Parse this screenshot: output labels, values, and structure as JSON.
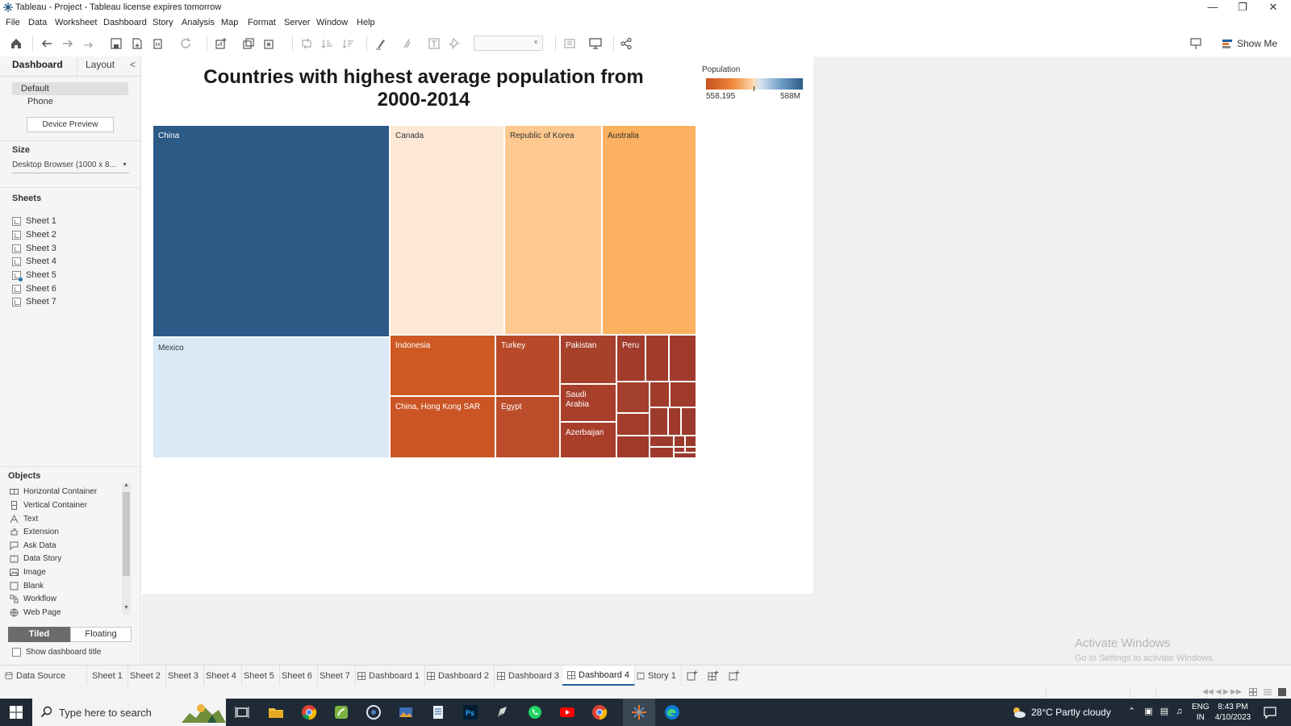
{
  "window": {
    "title": "Tableau - Project - Tableau license expires tomorrow"
  },
  "menu": [
    "File",
    "Data",
    "Worksheet",
    "Dashboard",
    "Story",
    "Analysis",
    "Map",
    "Format",
    "Server",
    "Window",
    "Help"
  ],
  "toolbar": {
    "show_me": "Show Me"
  },
  "left_pane": {
    "tabs": {
      "dashboard": "Dashboard",
      "layout": "Layout"
    },
    "devices": {
      "default": "Default",
      "phone": "Phone"
    },
    "device_preview": "Device Preview",
    "size_label": "Size",
    "size_value": "Desktop Browser (1000 x 8...",
    "sheets_label": "Sheets",
    "sheets": [
      "Sheet 1",
      "Sheet 2",
      "Sheet 3",
      "Sheet 4",
      "Sheet 5",
      "Sheet 6",
      "Sheet 7"
    ],
    "objects_label": "Objects",
    "objects": [
      {
        "label": "Horizontal Container",
        "icon": "horizontal-container-icon"
      },
      {
        "label": "Vertical Container",
        "icon": "vertical-container-icon"
      },
      {
        "label": "Text",
        "icon": "text-icon"
      },
      {
        "label": "Extension",
        "icon": "extension-icon"
      },
      {
        "label": "Ask Data",
        "icon": "ask-data-icon"
      },
      {
        "label": "Data Story",
        "icon": "data-story-icon"
      },
      {
        "label": "Image",
        "icon": "image-icon"
      },
      {
        "label": "Blank",
        "icon": "blank-icon"
      },
      {
        "label": "Workflow",
        "icon": "workflow-icon"
      },
      {
        "label": "Web Page",
        "icon": "web-page-icon"
      }
    ],
    "tiled": "Tiled",
    "floating": "Floating",
    "show_dashboard_title": "Show dashboard title"
  },
  "dashboard": {
    "title": "Countries with highest average population from 2000-2014",
    "legend": {
      "title": "Population",
      "min": "558,195",
      "max": "588M"
    }
  },
  "chart_data": {
    "type": "treemap",
    "title": "Countries with highest average population from 2000-2014",
    "color_legend": {
      "title": "Population",
      "min": "558,195",
      "max": "588M"
    },
    "labeled_cells": [
      {
        "label": "China",
        "color": "#2c5a87"
      },
      {
        "label": "Mexico",
        "color": "#d9e9f5"
      },
      {
        "label": "Canada",
        "color": "#fde8d6"
      },
      {
        "label": "Republic of Korea",
        "color": "#fdc98f"
      },
      {
        "label": "Australia",
        "color": "#fbb15f"
      },
      {
        "label": "Indonesia",
        "color": "#cf5a23"
      },
      {
        "label": "China, Hong Kong SAR",
        "color": "#cb5524"
      },
      {
        "label": "Turkey",
        "color": "#b84a2a"
      },
      {
        "label": "Egypt",
        "color": "#bb4d2a"
      },
      {
        "label": "Pakistan",
        "color": "#a8412c"
      },
      {
        "label": "Saudi Arabia",
        "color": "#a83f2b"
      },
      {
        "label": "Azerbaijan",
        "color": "#a83f2b"
      },
      {
        "label": "Peru",
        "color": "#a13c2d"
      }
    ]
  },
  "tabs": {
    "data_source": "Data Source",
    "items": [
      "Sheet 1",
      "Sheet 2",
      "Sheet 3",
      "Sheet 4",
      "Sheet 5",
      "Sheet 6",
      "Sheet 7",
      "Dashboard 1",
      "Dashboard 2",
      "Dashboard 3",
      "Dashboard 4",
      "Story 1"
    ],
    "active": "Dashboard 4"
  },
  "watermark": {
    "line1": "Activate Windows",
    "line2": "Go to Settings to activate Windows."
  },
  "taskbar": {
    "search_placeholder": "Type here to search",
    "weather": "28°C  Partly cloudy",
    "lang1": "ENG",
    "lang2": "IN",
    "time": "8:43 PM",
    "date": "4/10/2023"
  }
}
